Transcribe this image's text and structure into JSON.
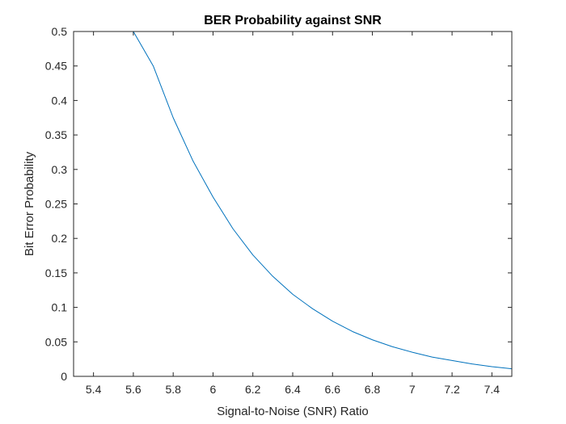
{
  "chart_data": {
    "type": "line",
    "title": "BER Probability against SNR",
    "xlabel": "Signal-to-Noise (SNR) Ratio",
    "ylabel": "Bit Error Probability",
    "xlim": [
      5.3,
      7.5
    ],
    "ylim": [
      0,
      0.5
    ],
    "xticks": [
      5.4,
      5.6,
      5.8,
      6,
      6.2,
      6.4,
      6.6,
      6.8,
      7,
      7.2,
      7.4
    ],
    "xtick_labels": [
      "5.4",
      "5.6",
      "5.8",
      "6",
      "6.2",
      "6.4",
      "6.6",
      "6.8",
      "7",
      "7.2",
      "7.4"
    ],
    "yticks": [
      0,
      0.05,
      0.1,
      0.15,
      0.2,
      0.25,
      0.3,
      0.35,
      0.4,
      0.45,
      0.5
    ],
    "ytick_labels": [
      "0",
      "0.05",
      "0.1",
      "0.15",
      "0.2",
      "0.25",
      "0.3",
      "0.35",
      "0.4",
      "0.45",
      "0.5"
    ],
    "grid": false,
    "box": true,
    "line_color": "#0072BD",
    "series": [
      {
        "x": [
          5.3,
          5.4,
          5.5,
          5.6,
          5.7,
          5.8,
          5.9,
          6.0,
          6.1,
          6.2,
          6.3,
          6.4,
          6.5,
          6.6,
          6.7,
          6.8,
          6.9,
          7.0,
          7.1,
          7.2,
          7.3,
          7.4,
          7.5
        ],
        "values": [
          0.5,
          0.5,
          0.5,
          0.5,
          0.45,
          0.375,
          0.312,
          0.26,
          0.214,
          0.176,
          0.145,
          0.119,
          0.098,
          0.08,
          0.065,
          0.053,
          0.043,
          0.035,
          0.028,
          0.023,
          0.018,
          0.014,
          0.011
        ]
      }
    ]
  }
}
